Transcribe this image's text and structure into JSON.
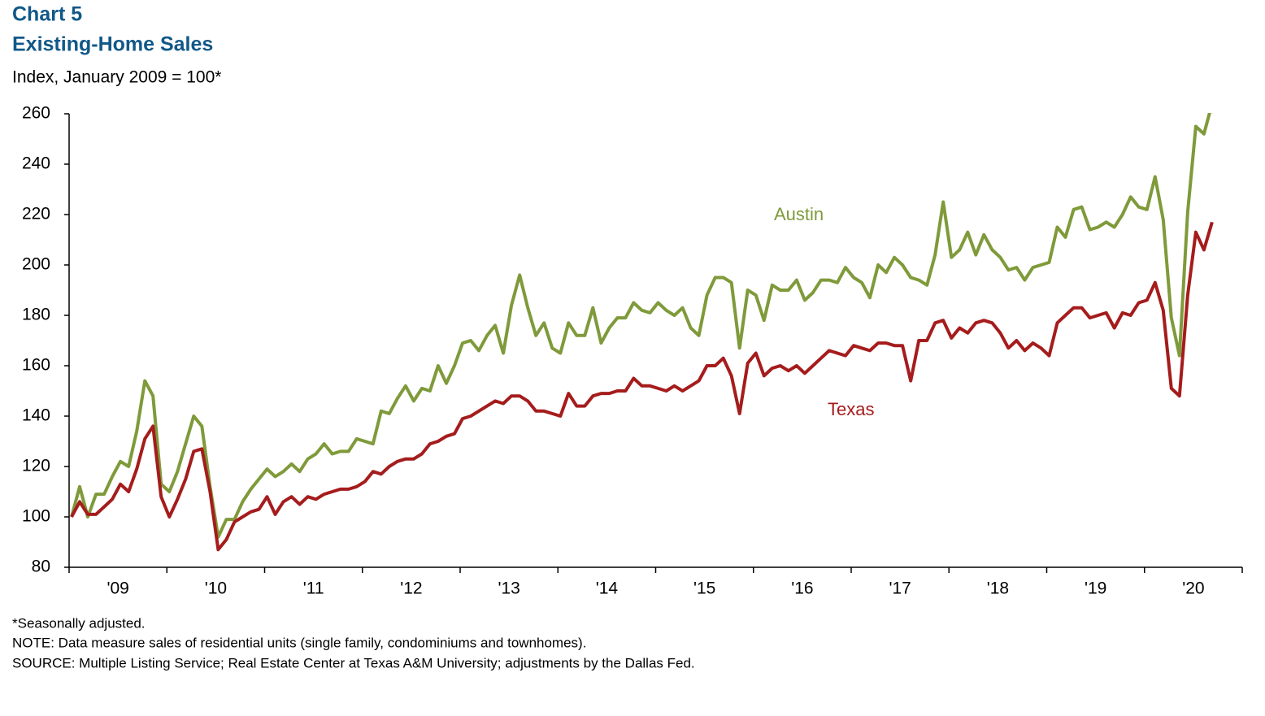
{
  "chart_data": {
    "type": "line",
    "title": "Chart 5",
    "subtitle": "Existing-Home Sales",
    "y_label": "Index, January 2009 = 100*",
    "notes": [
      "*Seasonally adjusted.",
      "NOTE: Data measure sales of residential units (single family, condominiums and townhomes).",
      "SOURCE: Multiple Listing Service; Real Estate Center at Texas A&M University; adjustments by the Dallas Fed."
    ],
    "categories": [
      null,
      null,
      null,
      null,
      null,
      null,
      "'09",
      null,
      null,
      null,
      null,
      null,
      null,
      null,
      null,
      null,
      null,
      null,
      "'10",
      null,
      null,
      null,
      null,
      null,
      null,
      null,
      null,
      null,
      null,
      null,
      "'11",
      null,
      null,
      null,
      null,
      null,
      null,
      null,
      null,
      null,
      null,
      null,
      "'12",
      null,
      null,
      null,
      null,
      null,
      null,
      null,
      null,
      null,
      null,
      null,
      "'13",
      null,
      null,
      null,
      null,
      null,
      null,
      null,
      null,
      null,
      null,
      null,
      "'14",
      null,
      null,
      null,
      null,
      null,
      null,
      null,
      null,
      null,
      null,
      null,
      "'15",
      null,
      null,
      null,
      null,
      null,
      null,
      null,
      null,
      null,
      null,
      null,
      "'16",
      null,
      null,
      null,
      null,
      null,
      null,
      null,
      null,
      null,
      null,
      null,
      "'17",
      null,
      null,
      null,
      null,
      null,
      null,
      null,
      null,
      null,
      null,
      null,
      "'18",
      null,
      null,
      null,
      null,
      null,
      null,
      null,
      null,
      null,
      null,
      null,
      "'19",
      null,
      null,
      null,
      null,
      null,
      null,
      null,
      null,
      null,
      null,
      null,
      "'20",
      null,
      null
    ],
    "series": [
      {
        "name": "Austin",
        "color": "#7f9a3a",
        "values": [
          100,
          112,
          100,
          109,
          109,
          116,
          122,
          120,
          134,
          154,
          148,
          113,
          110,
          118,
          129,
          140,
          136,
          112,
          92,
          99,
          99,
          106,
          111,
          115,
          119,
          116,
          118,
          121,
          118,
          123,
          125,
          129,
          125,
          126,
          126,
          131,
          130,
          129,
          142,
          141,
          147,
          152,
          146,
          151,
          150,
          160,
          153,
          160,
          169,
          170,
          166,
          172,
          176,
          165,
          184,
          196,
          183,
          172,
          177,
          167,
          165,
          177,
          172,
          172,
          183,
          169,
          175,
          179,
          179,
          185,
          182,
          181,
          185,
          182,
          180,
          183,
          175,
          172,
          188,
          195,
          195,
          193,
          167,
          190,
          188,
          178,
          192,
          190,
          190,
          194,
          186,
          189,
          194,
          194,
          193,
          199,
          195,
          193,
          187,
          200,
          197,
          203,
          200,
          195,
          194,
          192,
          204,
          225,
          203,
          206,
          213,
          204,
          212,
          206,
          203,
          198,
          199,
          194,
          199,
          200,
          201,
          215,
          211,
          222,
          223,
          214,
          215,
          217,
          215,
          220,
          227,
          223,
          222,
          235,
          218,
          179,
          164,
          221,
          255,
          252,
          264
        ]
      },
      {
        "name": "Texas",
        "color": "#a51c1c",
        "values": [
          100,
          106,
          101,
          101,
          104,
          107,
          113,
          110,
          119,
          131,
          136,
          108,
          100,
          107,
          115,
          126,
          127,
          110,
          87,
          91,
          98,
          100,
          102,
          103,
          108,
          101,
          106,
          108,
          105,
          108,
          107,
          109,
          110,
          111,
          111,
          112,
          114,
          118,
          117,
          120,
          122,
          123,
          123,
          125,
          129,
          130,
          132,
          133,
          139,
          140,
          142,
          144,
          146,
          145,
          148,
          148,
          146,
          142,
          142,
          141,
          140,
          149,
          144,
          144,
          148,
          149,
          149,
          150,
          150,
          155,
          152,
          152,
          151,
          150,
          152,
          150,
          152,
          154,
          160,
          160,
          163,
          156,
          141,
          161,
          165,
          156,
          159,
          160,
          158,
          160,
          157,
          160,
          163,
          166,
          165,
          164,
          168,
          167,
          166,
          169,
          169,
          168,
          168,
          154,
          170,
          170,
          177,
          178,
          171,
          175,
          173,
          177,
          178,
          177,
          173,
          167,
          170,
          166,
          169,
          167,
          164,
          177,
          180,
          183,
          183,
          179,
          180,
          181,
          175,
          181,
          180,
          185,
          186,
          193,
          182,
          151,
          148,
          188,
          213,
          206,
          217
        ]
      }
    ],
    "ylim": [
      80,
      260
    ],
    "yticks": [
      80,
      100,
      120,
      140,
      160,
      180,
      200,
      220,
      240,
      260
    ],
    "grid": false
  }
}
